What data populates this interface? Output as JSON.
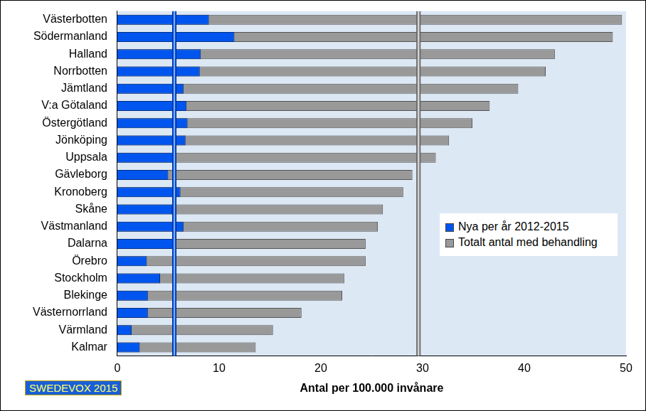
{
  "chart_data": {
    "type": "bar",
    "orientation": "horizontal",
    "stacked": false,
    "grid": false,
    "legend": "right",
    "x_label": "Antal per 100.000 invånare",
    "annotations": [
      "SWEDEVOX 2015"
    ],
    "categories": [
      "Västerbotten",
      "Södermanland",
      "Halland",
      "Norrbotten",
      "Jämtland",
      "V:a Götaland",
      "Östergötland",
      "Jönköping",
      "Uppsala",
      "Gävleborg",
      "Kronoberg",
      "Skåne",
      "Västmanland",
      "Dalarna",
      "Örebro",
      "Stockholm",
      "Blekinge",
      "Västernorrland",
      "Värmland",
      "Kalmar"
    ],
    "series": [
      {
        "name": "Nya per år 2012-2015",
        "color": "#0055ee",
        "average": 5.6,
        "values": [
          9.0,
          11.5,
          8.2,
          8.1,
          6.5,
          6.8,
          6.9,
          6.7,
          5.5,
          5.0,
          6.2,
          5.4,
          6.5,
          5.6,
          2.9,
          4.2,
          3.0,
          3.0,
          1.4,
          2.2
        ]
      },
      {
        "name": "Totalt antal med behandling",
        "color": "#999999",
        "average": 29.6,
        "values": [
          49.6,
          48.7,
          43.0,
          42.1,
          39.4,
          36.6,
          34.9,
          32.6,
          31.3,
          29.0,
          28.1,
          26.1,
          25.6,
          24.4,
          24.4,
          22.3,
          22.1,
          18.1,
          15.3,
          13.6
        ]
      }
    ],
    "xlim": [
      0,
      50
    ],
    "xticks": [
      0,
      10,
      20,
      30,
      40,
      50
    ]
  }
}
